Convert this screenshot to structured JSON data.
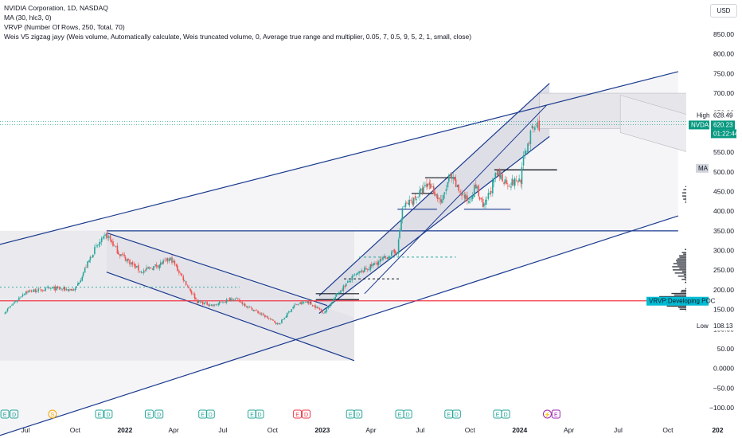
{
  "header": {
    "title": "NVIDIA Corporation, 1D, NASDAQ",
    "indicators": [
      "MA (30, hlc3, 0)",
      "VRVP (Number Of Rows, 250, Total, 70)",
      "Weis V5 zigzag jayy (Weis volume, Automatically calculate, Weis truncated volume, 0, Average true range and multiplier, 0.05, 7, 0.5, 9, 5, 2, 1, small, close)"
    ],
    "currency_button": "USD"
  },
  "chart_data": {
    "type": "candlestick",
    "symbol": "NVDA",
    "price_axis": {
      "ticks": [
        850,
        800,
        750,
        700,
        650,
        600,
        550,
        500,
        450,
        400,
        350,
        300,
        250,
        200,
        150,
        100,
        50,
        0,
        -50,
        -100
      ],
      "tick_labels": [
        "850.00",
        "800.00",
        "750.00",
        "700.00",
        "650.00",
        "600.00",
        "550.00",
        "500.00",
        "450.00",
        "400.00",
        "350.00",
        "300.00",
        "250.00",
        "200.00",
        "150.00",
        "100.00",
        "50.00",
        "0.0000",
        "−50.00",
        "−100.00"
      ],
      "range": [
        -115,
        880
      ]
    },
    "time_axis": {
      "labels": [
        "Jul",
        "Oct",
        "2022",
        "Apr",
        "Jul",
        "Oct",
        "2023",
        "Apr",
        "Jul",
        "Oct",
        "2024",
        "Apr",
        "Jul",
        "Oct",
        "202"
      ],
      "range": [
        "2021-05-15",
        "2025-02-15"
      ]
    },
    "price_labels": {
      "high": {
        "label": "High",
        "value": "628.49"
      },
      "current": {
        "label": "NVDA",
        "value": "620.23",
        "countdown": "01:22:44"
      },
      "ma": {
        "label": "MA"
      },
      "poc": {
        "label": "VRVP:Developing POC"
      },
      "low": {
        "label": "Low",
        "value": "108.13"
      }
    },
    "price_path": [
      [
        "2021-05-24",
        143
      ],
      [
        "2021-07-01",
        195
      ],
      [
        "2021-08-20",
        203
      ],
      [
        "2021-10-01",
        200
      ],
      [
        "2021-11-05",
        300
      ],
      [
        "2021-11-29",
        340
      ],
      [
        "2021-12-20",
        295
      ],
      [
        "2022-02-01",
        245
      ],
      [
        "2022-03-28",
        278
      ],
      [
        "2022-05-15",
        170
      ],
      [
        "2022-06-15",
        160
      ],
      [
        "2022-07-20",
        180
      ],
      [
        "2022-09-01",
        145
      ],
      [
        "2022-10-13",
        112
      ],
      [
        "2022-11-10",
        160
      ],
      [
        "2022-12-05",
        170
      ],
      [
        "2023-01-05",
        142
      ],
      [
        "2023-02-01",
        195
      ],
      [
        "2023-03-01",
        235
      ],
      [
        "2023-04-20",
        275
      ],
      [
        "2023-05-20",
        300
      ],
      [
        "2023-05-30",
        410
      ],
      [
        "2023-06-20",
        430
      ],
      [
        "2023-07-18",
        470
      ],
      [
        "2023-08-10",
        420
      ],
      [
        "2023-08-25",
        490
      ],
      [
        "2023-09-10",
        455
      ],
      [
        "2023-09-28",
        425
      ],
      [
        "2023-10-12",
        465
      ],
      [
        "2023-10-26",
        405
      ],
      [
        "2023-11-20",
        495
      ],
      [
        "2023-12-12",
        470
      ],
      [
        "2024-01-03",
        480
      ],
      [
        "2024-01-10",
        545
      ],
      [
        "2024-01-25",
        610
      ],
      [
        "2024-02-06",
        620
      ]
    ],
    "channels": [
      {
        "name": "major-channel-upper",
        "from": [
          "2021-04-01",
          300
        ],
        "to": [
          "2024-10-20",
          755
        ]
      },
      {
        "name": "major-channel-lower",
        "from": [
          "2021-04-01",
          -190
        ],
        "to": [
          "2024-10-20",
          388
        ]
      },
      {
        "name": "downtrend-channel-upper",
        "from": [
          "2021-11-28",
          345
        ],
        "to": [
          "2023-01-10",
          160
        ]
      },
      {
        "name": "downtrend-channel-lower",
        "from": [
          "2021-11-28",
          245
        ],
        "to": [
          "2023-03-01",
          20
        ]
      },
      {
        "name": "uptrend-channel-upper",
        "from": [
          "2022-12-26",
          185
        ],
        "to": [
          "2024-02-25",
          725
        ]
      },
      {
        "name": "uptrend-channel-lower",
        "from": [
          "2022-12-26",
          140
        ],
        "to": [
          "2024-02-25",
          590
        ]
      }
    ],
    "levels": [
      {
        "name": "poc-line",
        "price": 172,
        "color": "#f23645"
      },
      {
        "name": "support-350",
        "price": 350,
        "from": "2021-11-28",
        "to": "2024-10-20"
      }
    ],
    "volume_profile": {
      "side": "right",
      "peak_price": 172
    }
  },
  "events": {
    "earnings_icon": "earnings-icon",
    "split_icon": "split-icon",
    "dividend_icon": "dividend-icon"
  },
  "colors": {
    "up": "#26a69a",
    "down": "#ef5350",
    "channel": "#1a3a8f",
    "poc": "#f23645",
    "current_price": "#089981",
    "earnings": "#26a69a",
    "earnings_miss": "#f23645",
    "split": "#f7a600",
    "dividend": "#9c27b0"
  }
}
